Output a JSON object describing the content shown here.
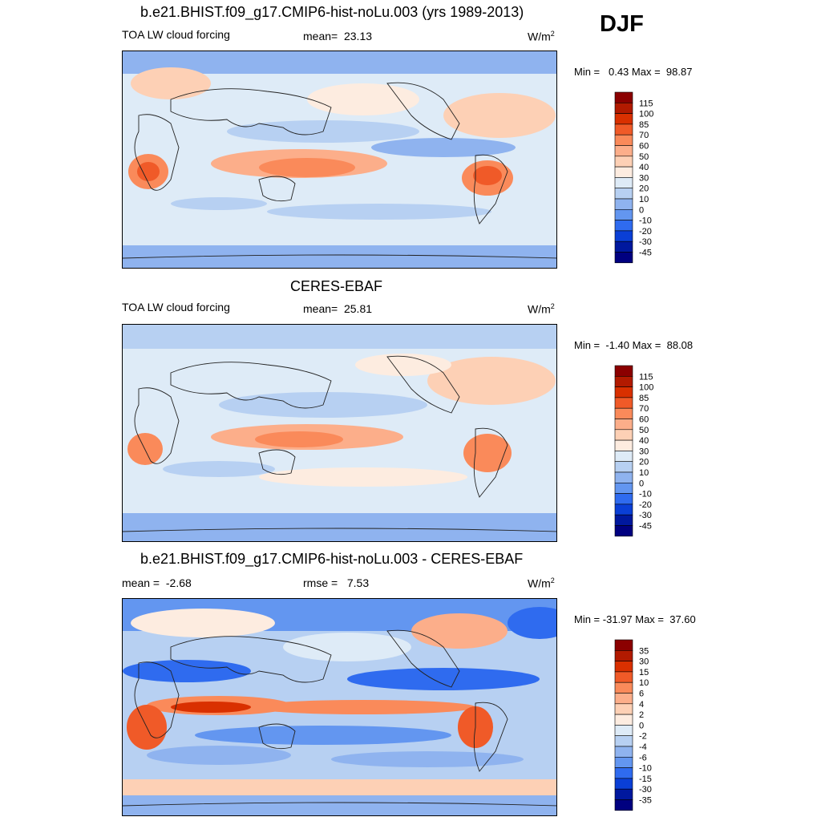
{
  "season": "DJF",
  "units_label": "W/m",
  "units_sup": "2",
  "chart_data": [
    {
      "type": "heatmap",
      "title": "b.e21.BHIST.f09_g17.CMIP6-hist-noLu.003 (yrs 1989-2013)",
      "left_label": "TOA LW cloud forcing",
      "stat_label": "mean=",
      "stat_value": "23.13",
      "minmax": "Min =   0.43 Max =  98.87",
      "colorbar_levels": [
        "115",
        "100",
        "85",
        "70",
        "60",
        "50",
        "40",
        "30",
        "20",
        "10",
        "0",
        "-10",
        "-20",
        "-30",
        "-45"
      ],
      "colorbar_colors": [
        "#8b0000",
        "#b21a00",
        "#d93000",
        "#f05a28",
        "#fa8a5a",
        "#fcae8a",
        "#fdd0b5",
        "#fdece0",
        "#deebf7",
        "#b7d0f2",
        "#8fb3ef",
        "#6396f0",
        "#2f6bef",
        "#0a3fd6",
        "#00189e",
        "#000080"
      ]
    },
    {
      "type": "heatmap",
      "title": "CERES-EBAF",
      "left_label": "TOA LW cloud forcing",
      "stat_label": "mean=",
      "stat_value": "25.81",
      "minmax": "Min =  -1.40 Max =  88.08",
      "colorbar_levels": [
        "115",
        "100",
        "85",
        "70",
        "60",
        "50",
        "40",
        "30",
        "20",
        "10",
        "0",
        "-10",
        "-20",
        "-30",
        "-45"
      ],
      "colorbar_colors": [
        "#8b0000",
        "#b21a00",
        "#d93000",
        "#f05a28",
        "#fa8a5a",
        "#fcae8a",
        "#fdd0b5",
        "#fdece0",
        "#deebf7",
        "#b7d0f2",
        "#8fb3ef",
        "#6396f0",
        "#2f6bef",
        "#0a3fd6",
        "#00189e",
        "#000080"
      ]
    },
    {
      "type": "heatmap",
      "title": "b.e21.BHIST.f09_g17.CMIP6-hist-noLu.003 - CERES-EBAF",
      "left_label": "mean =  -2.68",
      "stat_label": "rmse =",
      "stat_value": "7.53",
      "minmax": "Min = -31.97 Max =  37.60",
      "colorbar_levels": [
        "35",
        "30",
        "15",
        "10",
        "6",
        "4",
        "2",
        "0",
        "-2",
        "-4",
        "-6",
        "-10",
        "-15",
        "-30",
        "-35"
      ],
      "colorbar_colors": [
        "#8b0000",
        "#b21a00",
        "#d93000",
        "#f05a28",
        "#fa8a5a",
        "#fcae8a",
        "#fdd0b5",
        "#fdece0",
        "#deebf7",
        "#b7d0f2",
        "#8fb3ef",
        "#6396f0",
        "#2f6bef",
        "#0a3fd6",
        "#00189e",
        "#000080"
      ]
    }
  ]
}
